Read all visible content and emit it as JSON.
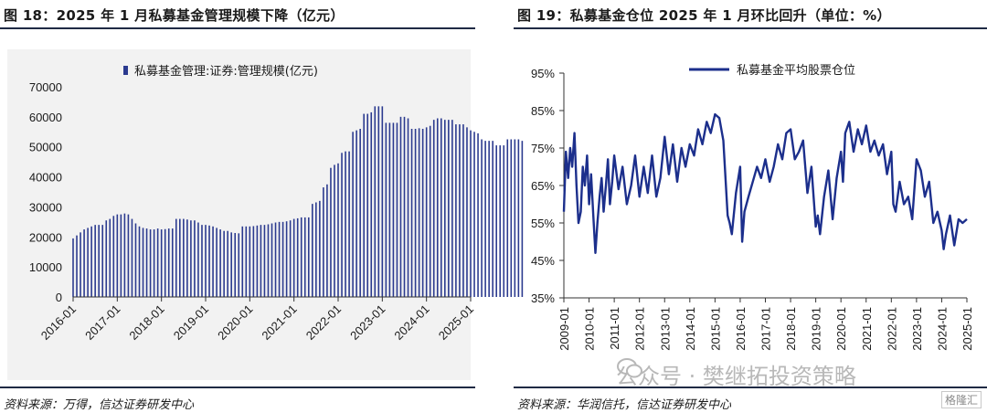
{
  "left": {
    "title": "图 18：2025 年 1 月私募基金管理规模下降（亿元）",
    "source": "资料来源：万得，信达证券研发中心",
    "chart_data": {
      "type": "bar",
      "series_name": "私募基金管理:证券:管理规模(亿元)",
      "color": "#2b3a8f",
      "ylim": [
        0,
        70000
      ],
      "yticks": [
        "0",
        "10000",
        "20000",
        "30000",
        "40000",
        "50000",
        "60000",
        "70000"
      ],
      "xticks": [
        "2016-01",
        "2017-01",
        "2018-01",
        "2019-01",
        "2020-01",
        "2021-01",
        "2022-01",
        "2023-01",
        "2024-01",
        "2025-01"
      ],
      "start": "2016-01",
      "values": [
        19500,
        20500,
        21500,
        22500,
        23000,
        23500,
        24000,
        24000,
        24000,
        25500,
        26000,
        27000,
        27500,
        27500,
        27800,
        27500,
        26000,
        24500,
        23500,
        23000,
        22800,
        22500,
        22500,
        22800,
        22500,
        22600,
        22800,
        22800,
        26000,
        26000,
        26000,
        25800,
        25500,
        25500,
        24800,
        24000,
        24000,
        23800,
        23500,
        23000,
        22500,
        22000,
        22000,
        21500,
        21300,
        21200,
        23500,
        23500,
        23500,
        23600,
        23800,
        24000,
        24000,
        24200,
        24500,
        24800,
        25000,
        25000,
        25200,
        25500,
        26000,
        26200,
        26500,
        26500,
        26500,
        31000,
        31500,
        32000,
        36500,
        37500,
        43000,
        44000,
        44500,
        48000,
        48500,
        48500,
        55000,
        55500,
        56000,
        61000,
        61000,
        61500,
        63500,
        63500,
        63500,
        58000,
        58000,
        58000,
        58000,
        60000,
        60000,
        59500,
        56000,
        56000,
        56200,
        56000,
        56500,
        57000,
        59000,
        59500,
        59500,
        59000,
        59000,
        59000,
        57500,
        57500,
        57500,
        56500,
        55500,
        55000,
        54500,
        52500,
        52000,
        52000,
        52000,
        50500,
        50500,
        50500,
        52500,
        52500,
        52500,
        52500,
        52000
      ]
    }
  },
  "right": {
    "title": "图 19：私募基金仓位 2025 年 1 月环比回升（单位：%）",
    "source": "资料来源：华润信托，信达证券研发中心",
    "chart_data": {
      "type": "line",
      "series_name": "私募基金平均股票仓位",
      "color": "#1c2f8c",
      "ylim": [
        35,
        95
      ],
      "yticks": [
        "35%",
        "45%",
        "55%",
        "65%",
        "75%",
        "85%",
        "95%"
      ],
      "xticks": [
        "2009-01",
        "2010-01",
        "2011-01",
        "2012-01",
        "2013-01",
        "2014-01",
        "2015-01",
        "2016-01",
        "2017-01",
        "2018-01",
        "2019-01",
        "2020-01",
        "2021-01",
        "2022-01",
        "2023-01",
        "2024-01",
        "2025-01"
      ],
      "x": [
        2009.0,
        2009.08,
        2009.17,
        2009.25,
        2009.33,
        2009.42,
        2009.5,
        2009.58,
        2009.67,
        2009.75,
        2009.83,
        2009.92,
        2010.0,
        2010.08,
        2010.17,
        2010.25,
        2010.33,
        2010.42,
        2010.5,
        2010.58,
        2010.67,
        2010.75,
        2010.83,
        2010.92,
        2011.0,
        2011.17,
        2011.33,
        2011.5,
        2011.67,
        2011.83,
        2012.0,
        2012.17,
        2012.33,
        2012.5,
        2012.67,
        2012.83,
        2013.0,
        2013.17,
        2013.33,
        2013.5,
        2013.67,
        2013.83,
        2014.0,
        2014.17,
        2014.33,
        2014.5,
        2014.67,
        2014.83,
        2015.0,
        2015.17,
        2015.33,
        2015.5,
        2015.58,
        2015.67,
        2015.83,
        2016.0,
        2016.08,
        2016.17,
        2016.33,
        2016.5,
        2016.67,
        2016.83,
        2017.0,
        2017.17,
        2017.33,
        2017.5,
        2017.67,
        2017.83,
        2018.0,
        2018.17,
        2018.33,
        2018.5,
        2018.67,
        2018.83,
        2019.0,
        2019.08,
        2019.17,
        2019.33,
        2019.5,
        2019.67,
        2019.83,
        2020.0,
        2020.08,
        2020.17,
        2020.33,
        2020.5,
        2020.67,
        2020.83,
        2021.0,
        2021.17,
        2021.33,
        2021.5,
        2021.67,
        2021.83,
        2022.0,
        2022.08,
        2022.17,
        2022.33,
        2022.5,
        2022.67,
        2022.83,
        2023.0,
        2023.17,
        2023.33,
        2023.5,
        2023.67,
        2023.83,
        2024.0,
        2024.08,
        2024.17,
        2024.33,
        2024.5,
        2024.67,
        2024.83,
        2025.0
      ],
      "values": [
        58,
        74,
        67,
        75,
        70,
        79,
        65,
        55,
        58,
        70,
        65,
        73,
        60,
        68,
        57,
        47,
        55,
        62,
        67,
        58,
        65,
        72,
        60,
        66,
        73,
        64,
        70,
        60,
        65,
        73,
        62,
        70,
        63,
        73,
        62,
        67,
        78,
        68,
        76,
        66,
        75,
        70,
        76,
        73,
        80,
        76,
        82,
        79,
        84,
        83,
        77,
        57,
        55,
        52,
        63,
        70,
        50,
        58,
        62,
        66,
        70,
        67,
        72,
        66,
        70,
        76,
        72,
        79,
        80,
        72,
        74,
        77,
        63,
        70,
        54,
        57,
        52,
        62,
        69,
        56,
        67,
        74,
        66,
        79,
        82,
        74,
        80,
        76,
        81,
        74,
        77,
        73,
        76,
        68,
        74,
        60,
        58,
        66,
        60,
        62,
        56,
        72,
        69,
        62,
        66,
        55,
        58,
        53,
        48,
        52,
        57,
        49,
        56,
        55,
        56
      ]
    }
  },
  "watermark": {
    "text": "公众号 · 樊继拓投资策略",
    "badge": "格隆汇"
  }
}
